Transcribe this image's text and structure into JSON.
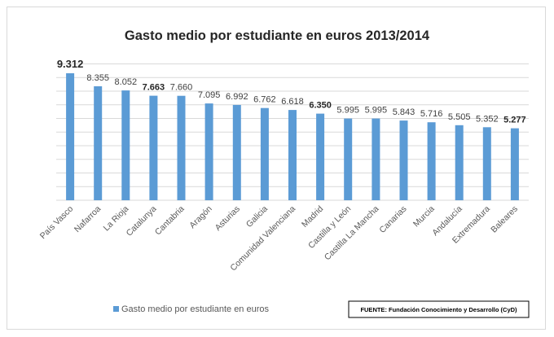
{
  "chart_data": {
    "type": "bar",
    "title": "Gasto medio por estudiante en euros 2013/2014",
    "categories": [
      "País Vasco",
      "Nafarroa",
      "La Rioja",
      "Catalunya",
      "Cantabria",
      "Aragón",
      "Asturias",
      "Galicia",
      "Comunidad Valenciana",
      "Madrid",
      "Castilla y León",
      "Castilla La Mancha",
      "Canarias",
      "Murcia",
      "Andalucía",
      "Extremadura",
      "Baleares"
    ],
    "values": [
      9312,
      8355,
      8052,
      7663,
      7660,
      7095,
      6992,
      6762,
      6618,
      6350,
      5995,
      5995,
      5843,
      5716,
      5505,
      5352,
      5277
    ],
    "value_labels": [
      "9.312",
      "8.355",
      "8.052",
      "7.663",
      "7.660",
      "7.095",
      "6.992",
      "6.762",
      "6.618",
      "6.350",
      "5.995",
      "5.995",
      "5.843",
      "5.716",
      "5.505",
      "5.352",
      "5.277"
    ],
    "bold_labels": [
      0,
      3,
      9,
      16
    ],
    "series": [
      {
        "name": "Gasto medio por estudiante en euros"
      }
    ],
    "ylim": [
      0,
      10000
    ],
    "grid": true,
    "legend": "bottom-left",
    "bar_color": "#5b9bd5",
    "grid_color": "#d9d9d9",
    "source": "FUENTE: Fundación Conocimiento y Desarrollo (CyD)"
  }
}
